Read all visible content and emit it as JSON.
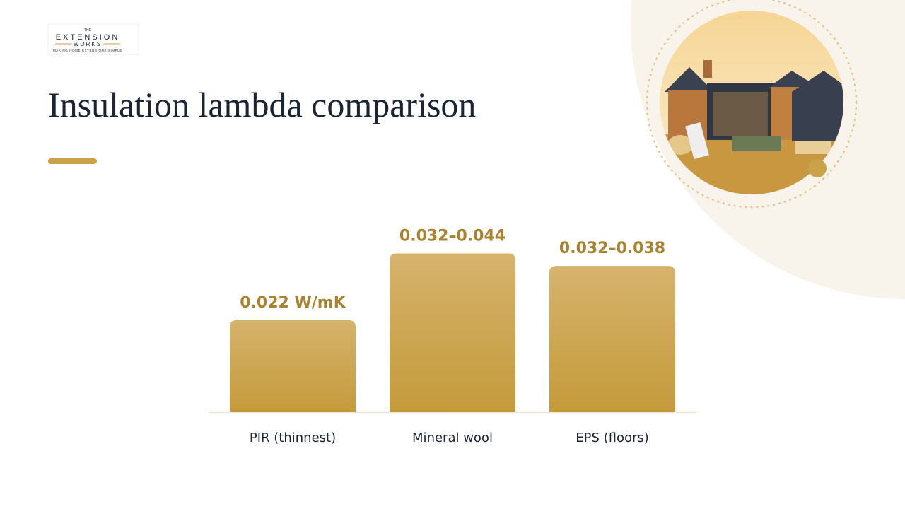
{
  "logo": {
    "small": "THE",
    "main": "EXTENSION",
    "sub": "WORKS",
    "tagline": "MAKING HOME EXTENSIONS SIMPLE"
  },
  "chart_data": {
    "type": "bar",
    "title": "Insulation lambda comparison",
    "categories": [
      "PIR (thinnest)",
      "Mineral wool",
      "EPS (floors)"
    ],
    "low": [
      0.022,
      0.032,
      0.032
    ],
    "high": [
      0.022,
      0.044,
      0.038
    ],
    "value_labels": [
      "0.022 W/mK",
      "0.032–0.044",
      "0.032–0.038"
    ],
    "color": "#c9a24a"
  }
}
